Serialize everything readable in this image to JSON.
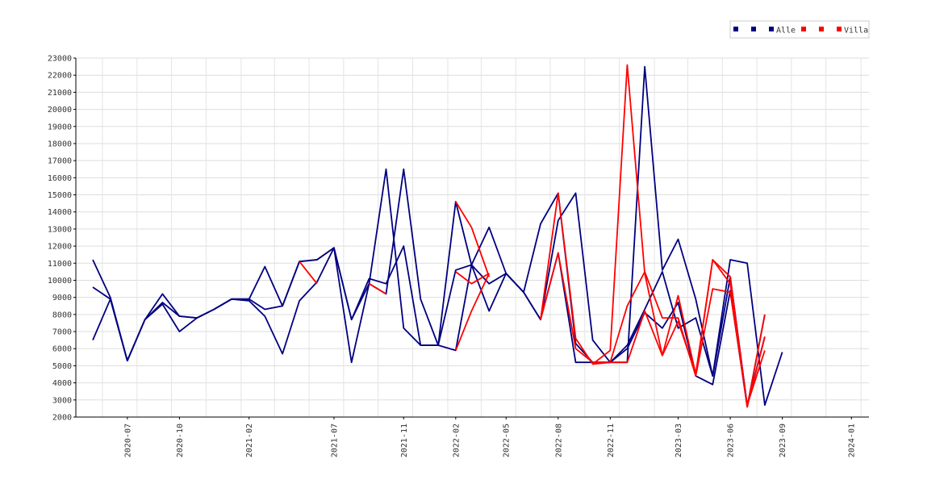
{
  "chart_data": {
    "type": "line",
    "grid": true,
    "legend_position": "top-right",
    "ylim": [
      2000,
      23000
    ],
    "yticks": [
      2000,
      3000,
      4000,
      5000,
      6000,
      7000,
      8000,
      9000,
      10000,
      11000,
      12000,
      13000,
      14000,
      15000,
      16000,
      17000,
      18000,
      19000,
      20000,
      21000,
      22000,
      23000
    ],
    "xlim": [
      "2020-04-15",
      "2024-02-15"
    ],
    "xticks": [
      "2020-07",
      "2020-10",
      "2021-02",
      "2021-07",
      "2021-11",
      "2022-02",
      "2022-05",
      "2022-08",
      "2022-11",
      "2023-03",
      "2023-06",
      "2023-09",
      "2024-01"
    ],
    "legend": [
      {
        "label": "",
        "color": "#000080"
      },
      {
        "label": "",
        "color": "#000080"
      },
      {
        "label": "Alle",
        "color": "#000080"
      },
      {
        "label": "",
        "color": "#ff0000"
      },
      {
        "label": "",
        "color": "#ff0000"
      },
      {
        "label": "Villa",
        "color": "#ff0000"
      }
    ],
    "series": [
      {
        "name": "Alle",
        "color": "#000080",
        "x": [
          "2020-05",
          "2020-06",
          "2020-07",
          "2020-08",
          "2020-09",
          "2020-10",
          "2020-11",
          "2020-12",
          "2021-01",
          "2021-02",
          "2021-03",
          "2021-04",
          "2021-05",
          "2021-06",
          "2021-07",
          "2021-08",
          "2021-09",
          "2021-10",
          "2021-11",
          "2021-12",
          "2022-01",
          "2022-02",
          "2022-03",
          "2022-04",
          "2022-05",
          "2022-06",
          "2022-07",
          "2022-08",
          "2022-09",
          "2022-10",
          "2022-11",
          "2022-12",
          "2023-01",
          "2023-02",
          "2023-03",
          "2023-04",
          "2023-05",
          "2023-06",
          "2023-07",
          "2023-08",
          "2023-09",
          "2023-10",
          "2023-11",
          "2023-12",
          "2024-01"
        ],
        "values": [
          11200,
          9000,
          5300,
          7700,
          9200,
          7900,
          7800,
          8300,
          8900,
          8900,
          10800,
          8500,
          11100,
          11200,
          11900,
          5200,
          9800,
          9200,
          16500,
          8900,
          6200,
          14600,
          10900,
          13100,
          10400,
          9300,
          13300,
          15100,
          6300,
          5200,
          5200,
          5200,
          22500,
          10600,
          12400,
          8900,
          4400,
          11200,
          11000,
          2700,
          5800,
          null,
          null,
          null,
          null
        ]
      },
      {
        "name": "Alle",
        "color": "#000080",
        "x": [
          "2020-05",
          "2020-06",
          "2020-07",
          "2020-08",
          "2020-09",
          "2020-10",
          "2020-11",
          "2020-12",
          "2021-01",
          "2021-02",
          "2021-03",
          "2021-04",
          "2021-05",
          "2021-06",
          "2021-07",
          "2021-08",
          "2021-09",
          "2021-10",
          "2021-11",
          "2021-12",
          "2022-01",
          "2022-02",
          "2022-03",
          "2022-04",
          "2022-05",
          "2022-06",
          "2022-07",
          "2022-08",
          "2022-09",
          "2022-10",
          "2022-11",
          "2022-12",
          "2023-01",
          "2023-02",
          "2023-03",
          "2023-04",
          "2023-05",
          "2023-06",
          "2023-07",
          "2023-08",
          "2023-09",
          "2023-10",
          "2023-11",
          "2023-12",
          "2024-01"
        ],
        "values": [
          9600,
          8900,
          5300,
          7700,
          8700,
          7900,
          7800,
          8300,
          8900,
          8800,
          7900,
          5700,
          8800,
          9900,
          11900,
          7700,
          9800,
          16500,
          7200,
          6200,
          6200,
          10600,
          10900,
          8200,
          10400,
          9300,
          7700,
          11600,
          5200,
          5200,
          5200,
          6200,
          8300,
          10500,
          7200,
          7800,
          4400,
          10200,
          2700,
          6700,
          null,
          null,
          null,
          null,
          null
        ]
      },
      {
        "name": "Alle",
        "color": "#000080",
        "x": [
          "2020-05",
          "2020-06",
          "2020-07",
          "2020-08",
          "2020-09",
          "2020-10",
          "2020-11",
          "2020-12",
          "2021-01",
          "2021-02",
          "2021-03",
          "2021-04",
          "2021-05",
          "2021-06",
          "2021-07",
          "2021-08",
          "2021-09",
          "2021-10",
          "2021-11",
          "2021-12",
          "2022-01",
          "2022-02",
          "2022-03",
          "2022-04",
          "2022-05",
          "2022-06",
          "2022-07",
          "2022-08",
          "2022-09",
          "2022-10",
          "2022-11",
          "2022-12",
          "2023-01",
          "2023-02",
          "2023-03",
          "2023-04",
          "2023-05",
          "2023-06",
          "2023-07",
          "2023-08",
          "2023-09",
          "2023-10",
          "2023-11",
          "2023-12",
          "2024-01"
        ],
        "values": [
          6500,
          8900,
          5300,
          7700,
          8600,
          7000,
          7800,
          8300,
          8900,
          8900,
          8300,
          8500,
          11100,
          11200,
          11900,
          7700,
          10100,
          9800,
          12000,
          6200,
          6200,
          5900,
          10900,
          9800,
          10400,
          9300,
          7700,
          13500,
          15100,
          6500,
          5200,
          6000,
          8100,
          7200,
          8700,
          4400,
          3900,
          9400,
          2600,
          8000,
          null,
          null,
          null,
          null,
          null
        ]
      },
      {
        "name": "Villa",
        "color": "#ff0000",
        "x": [
          "2020-05",
          "2020-06",
          "2020-07",
          "2020-08",
          "2020-09",
          "2020-10",
          "2020-11",
          "2020-12",
          "2021-01",
          "2021-02",
          "2021-03",
          "2021-04",
          "2021-05",
          "2021-06",
          "2021-07",
          "2021-08",
          "2021-09",
          "2021-10",
          "2021-11",
          "2021-12",
          "2022-01",
          "2022-02",
          "2022-03",
          "2022-04",
          "2022-05",
          "2022-06",
          "2022-07",
          "2022-08",
          "2022-09",
          "2022-10",
          "2022-11",
          "2022-12",
          "2023-01",
          "2023-02",
          "2023-03",
          "2023-04",
          "2023-05",
          "2023-06",
          "2023-07",
          "2023-08",
          "2023-09",
          "2023-10",
          "2023-11",
          "2023-12",
          "2024-01"
        ],
        "values": [
          null,
          null,
          null,
          null,
          null,
          null,
          null,
          null,
          null,
          null,
          null,
          null,
          11100,
          9800,
          null,
          null,
          9800,
          9200,
          null,
          null,
          null,
          10500,
          9800,
          10400,
          null,
          null,
          7700,
          15100,
          6600,
          5100,
          5900,
          22600,
          10400,
          5600,
          9100,
          4500,
          11200,
          10200,
          2600,
          6700,
          null,
          null,
          null,
          null,
          null
        ]
      },
      {
        "name": "Villa",
        "color": "#ff0000",
        "x": [
          "2020-05",
          "2020-06",
          "2020-07",
          "2020-08",
          "2020-09",
          "2020-10",
          "2020-11",
          "2020-12",
          "2021-01",
          "2021-02",
          "2021-03",
          "2021-04",
          "2021-05",
          "2021-06",
          "2021-07",
          "2021-08",
          "2021-09",
          "2021-10",
          "2021-11",
          "2021-12",
          "2022-01",
          "2022-02",
          "2022-03",
          "2022-04",
          "2022-05",
          "2022-06",
          "2022-07",
          "2022-08",
          "2022-09",
          "2022-10",
          "2022-11",
          "2022-12",
          "2023-01",
          "2023-02",
          "2023-03",
          "2023-04",
          "2023-05",
          "2023-06",
          "2023-07",
          "2023-08",
          "2023-09",
          "2023-10",
          "2023-11",
          "2023-12",
          "2024-01"
        ],
        "values": [
          null,
          null,
          null,
          null,
          null,
          null,
          null,
          null,
          null,
          null,
          null,
          null,
          null,
          null,
          null,
          null,
          null,
          null,
          null,
          null,
          null,
          14600,
          13100,
          10200,
          null,
          null,
          7700,
          11600,
          6000,
          5200,
          5200,
          8500,
          10500,
          7800,
          7800,
          4400,
          9500,
          9300,
          2700,
          5900,
          null,
          null,
          null,
          null,
          null
        ]
      },
      {
        "name": "Villa",
        "color": "#ff0000",
        "x": [
          "2020-05",
          "2020-06",
          "2020-07",
          "2020-08",
          "2020-09",
          "2020-10",
          "2020-11",
          "2020-12",
          "2021-01",
          "2021-02",
          "2021-03",
          "2021-04",
          "2021-05",
          "2021-06",
          "2021-07",
          "2021-08",
          "2021-09",
          "2021-10",
          "2021-11",
          "2021-12",
          "2022-01",
          "2022-02",
          "2022-03",
          "2022-04",
          "2022-05",
          "2022-06",
          "2022-07",
          "2022-08",
          "2022-09",
          "2022-10",
          "2022-11",
          "2022-12",
          "2023-01",
          "2023-02",
          "2023-03",
          "2023-04",
          "2023-05",
          "2023-06",
          "2023-07",
          "2023-08",
          "2023-09",
          "2023-10",
          "2023-11",
          "2023-12",
          "2024-01"
        ],
        "values": [
          null,
          null,
          null,
          null,
          null,
          null,
          null,
          null,
          null,
          null,
          null,
          null,
          null,
          null,
          null,
          null,
          null,
          null,
          null,
          null,
          null,
          5900,
          8200,
          10400,
          null,
          null,
          null,
          null,
          null,
          5100,
          5200,
          5200,
          8200,
          5600,
          7600,
          4500,
          11200,
          9800,
          2600,
          8000,
          null,
          null,
          null,
          null,
          null
        ]
      }
    ]
  }
}
